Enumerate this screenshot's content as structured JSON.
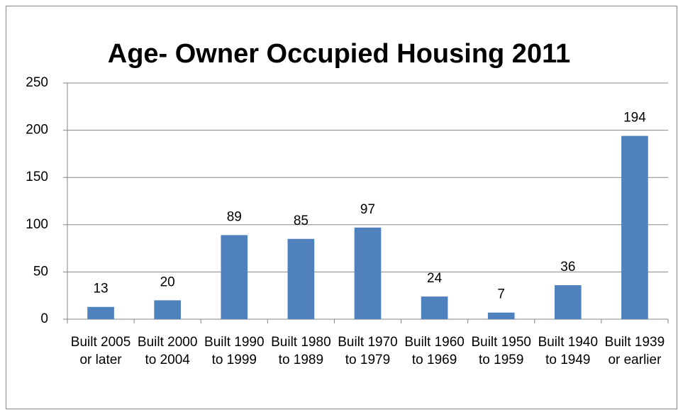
{
  "chart_data": {
    "type": "bar",
    "title": "Age- Owner Occupied Housing 2011",
    "categories": [
      "Built 2005 or later",
      "Built 2000 to 2004",
      "Built 1990 to 1999",
      "Built 1980 to 1989",
      "Built 1970 to 1979",
      "Built 1960 to 1969",
      "Built 1950 to 1959",
      "Built 1940 to 1949",
      "Built 1939 or earlier"
    ],
    "values": [
      13,
      20,
      89,
      85,
      97,
      24,
      7,
      36,
      194
    ],
    "color": "#4f81bd",
    "ylim": [
      0,
      250
    ],
    "yticks": [
      0,
      50,
      100,
      150,
      200,
      250
    ],
    "grid": true
  }
}
